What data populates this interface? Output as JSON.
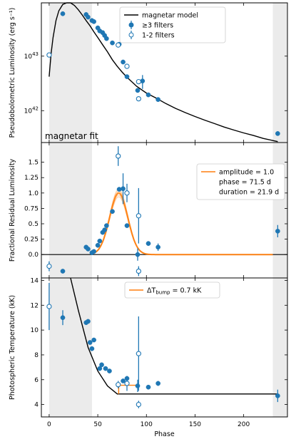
{
  "colors": {
    "blue": "#1f77b4",
    "orange": "#ff7f0e",
    "black": "#000000",
    "band": "#ebebeb"
  },
  "chart_data": [
    {
      "type": "scatter",
      "panel": "luminosity",
      "ylabel": "Pseudobolometric Luminosity (erg s⁻¹)",
      "yscale": "log",
      "ylim": [
        2.6e+41,
        9.5e+43
      ],
      "xlim": [
        -8,
        245
      ],
      "xticks": [
        0,
        50,
        100,
        150,
        200
      ],
      "yticks": [
        {
          "value": 1e+42,
          "base": "10",
          "exp": "42"
        },
        {
          "value": 1e+43,
          "base": "10",
          "exp": "43"
        }
      ],
      "shaded_bands": [
        [
          0,
          44
        ],
        [
          230,
          245
        ]
      ],
      "annotation": "magnetar fit",
      "legend": {
        "position": "top-right",
        "entries": [
          {
            "label": "magnetar model",
            "marker": "line"
          },
          {
            "label": "≥3 filters",
            "marker": "filled"
          },
          {
            "label": "1-2 filters",
            "marker": "open"
          }
        ]
      },
      "series": [
        {
          "name": "magnetar model",
          "kind": "line",
          "x": [
            0,
            2,
            4,
            7,
            10,
            14,
            18,
            22,
            26,
            30,
            34,
            38,
            42,
            46,
            50,
            55,
            60,
            65,
            70,
            75,
            80,
            90,
            100,
            110,
            120,
            130,
            140,
            150,
            160,
            170,
            180,
            190,
            200,
            210,
            220,
            235
          ],
          "y": [
            4.2e+42,
            1.1e+43,
            2.2e+43,
            4.5e+43,
            6.8e+43,
            8.9e+43,
            9.9e+43,
            9.6e+43,
            8.5e+43,
            7.1e+43,
            5.7e+43,
            4.5e+43,
            3.6e+43,
            2.8e+43,
            2.2e+43,
            1.62e+43,
            1.2e+43,
            8.6e+42,
            6.5e+42,
            5.1e+42,
            4.1e+42,
            2.8e+42,
            2.1e+42,
            1.7e+42,
            1.35e+42,
            1.1e+42,
            9.2e+41,
            7.8e+41,
            6.7e+41,
            5.8e+41,
            5e+41,
            4.4e+41,
            3.9e+41,
            3.5e+41,
            3.1e+41,
            2.7e+41
          ]
        },
        {
          "name": "≥3 filters",
          "kind": "filled",
          "x": [
            14,
            38,
            40,
            44,
            46,
            50,
            52,
            55,
            57,
            59,
            65,
            72,
            76,
            80,
            91,
            96,
            102,
            112,
            235
          ],
          "y": [
            6e+43,
            5.8e+43,
            5.2e+43,
            4.5e+43,
            4.3e+43,
            3.3e+43,
            2.9e+43,
            2.7e+43,
            2.4e+43,
            2.1e+43,
            1.75e+43,
            1.65e+43,
            7.8e+42,
            4.2e+42,
            2.35e+42,
            3.5e+42,
            1.95e+42,
            1.6e+42,
            3.8e+41
          ],
          "err_up": [
            0,
            0,
            0,
            0,
            0,
            0,
            0,
            0,
            0,
            0,
            0,
            0,
            0,
            0,
            0,
            1e+42,
            0,
            0,
            0
          ],
          "err_down": [
            0,
            0,
            0,
            0,
            0,
            0,
            0,
            0,
            0,
            0,
            0,
            0,
            0,
            0,
            0,
            1e+42,
            0,
            0,
            0
          ]
        },
        {
          "name": "1-2 filters",
          "kind": "open",
          "x": [
            0,
            71,
            80,
            92,
            92
          ],
          "y": [
            1.05e+43,
            1.6e+43,
            6.5e+42,
            3.4e+42,
            1.65e+42
          ],
          "err_up": [
            0,
            0,
            0,
            0,
            0
          ],
          "err_down": [
            0,
            0,
            0,
            0,
            0
          ]
        }
      ]
    },
    {
      "type": "scatter",
      "panel": "residual",
      "ylabel": "Fractional Residual Luminosity",
      "ylim": [
        -0.38,
        1.82
      ],
      "xlim": [
        -8,
        245
      ],
      "xticks": [
        0,
        50,
        100,
        150,
        200
      ],
      "yticks": [
        {
          "value": 0.0,
          "label": "0.0"
        },
        {
          "value": 0.25,
          "label": "0.25"
        },
        {
          "value": 0.5,
          "label": "0.5"
        },
        {
          "value": 0.75,
          "label": "0.75"
        },
        {
          "value": 1.0,
          "label": "1.0"
        },
        {
          "value": 1.25,
          "label": "1.25"
        },
        {
          "value": 1.5,
          "label": "1.5"
        }
      ],
      "shaded_bands": [
        [
          0,
          44
        ],
        [
          230,
          245
        ]
      ],
      "legend": {
        "position": "top-right",
        "entries": [
          {
            "label": "amplitude = 1.0",
            "marker": "line"
          },
          {
            "label": "phase = 71.5 d",
            "marker": "none"
          },
          {
            "label": "duration = 21.9 d",
            "marker": "none"
          }
        ]
      },
      "bump_model": {
        "amplitude": 1.0,
        "phase": 71.5,
        "duration": 21.9,
        "fit_x_range": [
          44,
          230
        ]
      },
      "series": [
        {
          "name": "≥3 filters",
          "kind": "filled",
          "x": [
            14,
            38,
            40,
            44,
            46,
            50,
            52,
            55,
            57,
            59,
            65,
            72,
            76,
            80,
            91,
            102,
            112,
            235
          ],
          "y": [
            -0.27,
            0.12,
            0.09,
            0.03,
            0.05,
            0.15,
            0.22,
            0.36,
            0.4,
            0.47,
            0.7,
            1.06,
            1.07,
            0.47,
            -0.0,
            0.18,
            0.12,
            0.38
          ],
          "err_up": [
            0,
            0,
            0,
            0,
            0,
            0,
            0,
            0,
            0,
            0,
            0,
            0,
            0.25,
            0,
            0.1,
            0,
            0.06,
            0.1
          ],
          "err_down": [
            0,
            0,
            0,
            0,
            0,
            0,
            0,
            0,
            0,
            0,
            0,
            0,
            0.25,
            0,
            0.1,
            0,
            0.06,
            0.1
          ]
        },
        {
          "name": "1-2 filters",
          "kind": "open",
          "x": [
            0,
            71,
            80,
            92,
            92
          ],
          "y": [
            -0.19,
            1.6,
            1.0,
            0.63,
            -0.27
          ],
          "err_up": [
            0.08,
            0.16,
            0.15,
            0.45,
            0.08
          ],
          "err_down": [
            0.08,
            0.16,
            0.15,
            0.45,
            0.08
          ]
        }
      ]
    },
    {
      "type": "scatter",
      "panel": "temperature",
      "xlabel": "Phase",
      "ylabel": "Photospheric Temperature (kK)",
      "ylim": [
        3.0,
        14.2
      ],
      "xlim": [
        -8,
        245
      ],
      "xticks": [
        0,
        50,
        100,
        150,
        200
      ],
      "yticks": [
        {
          "value": 4,
          "label": "4"
        },
        {
          "value": 6,
          "label": "6"
        },
        {
          "value": 8,
          "label": "8"
        },
        {
          "value": 10,
          "label": "10"
        },
        {
          "value": 12,
          "label": "12"
        },
        {
          "value": 14,
          "label": "14"
        }
      ],
      "shaded_bands": [
        [
          0,
          44
        ],
        [
          230,
          245
        ]
      ],
      "legend": {
        "position": "top-right",
        "entries": [
          {
            "label": "ΔT",
            "sub": "bump",
            "suffix": " = 0.7 kK",
            "marker": "line"
          }
        ]
      },
      "series": [
        {
          "name": "model",
          "kind": "line",
          "x": [
            22,
            30,
            40,
            50,
            60,
            70,
            72,
            235
          ],
          "y": [
            14.2,
            11.6,
            8.6,
            6.7,
            5.5,
            4.85,
            4.85,
            4.85
          ]
        },
        {
          "name": "bump model",
          "kind": "line",
          "x": [
            71.5,
            71.5,
            92
          ],
          "y": [
            4.85,
            5.55,
            5.55
          ]
        },
        {
          "name": "≥3 filters",
          "kind": "filled",
          "x": [
            14,
            38,
            40,
            42,
            44,
            46,
            52,
            54,
            58,
            62,
            76,
            80,
            91,
            102,
            112,
            235
          ],
          "y": [
            11.0,
            10.6,
            10.7,
            9.0,
            8.5,
            9.2,
            6.9,
            7.2,
            6.9,
            6.7,
            5.9,
            6.1,
            5.5,
            5.4,
            5.7,
            4.7
          ],
          "err_up": [
            0.6,
            0,
            0,
            0,
            0,
            0,
            0,
            0,
            0,
            0,
            0,
            0,
            0.5,
            0,
            0.2,
            0.5
          ],
          "err_down": [
            0.6,
            0,
            0,
            0,
            0,
            0,
            0,
            0,
            0,
            0,
            0,
            0,
            0.5,
            0,
            0.2,
            0.5
          ]
        },
        {
          "name": "1-2 filters",
          "kind": "open",
          "x": [
            0,
            71,
            80,
            92,
            92
          ],
          "y": [
            11.9,
            5.6,
            5.7,
            8.1,
            4.0
          ],
          "err_up": [
            1.9,
            0.3,
            0.6,
            3.0,
            0.3
          ],
          "err_down": [
            1.9,
            0.3,
            0.6,
            3.0,
            0.3
          ]
        }
      ]
    }
  ]
}
